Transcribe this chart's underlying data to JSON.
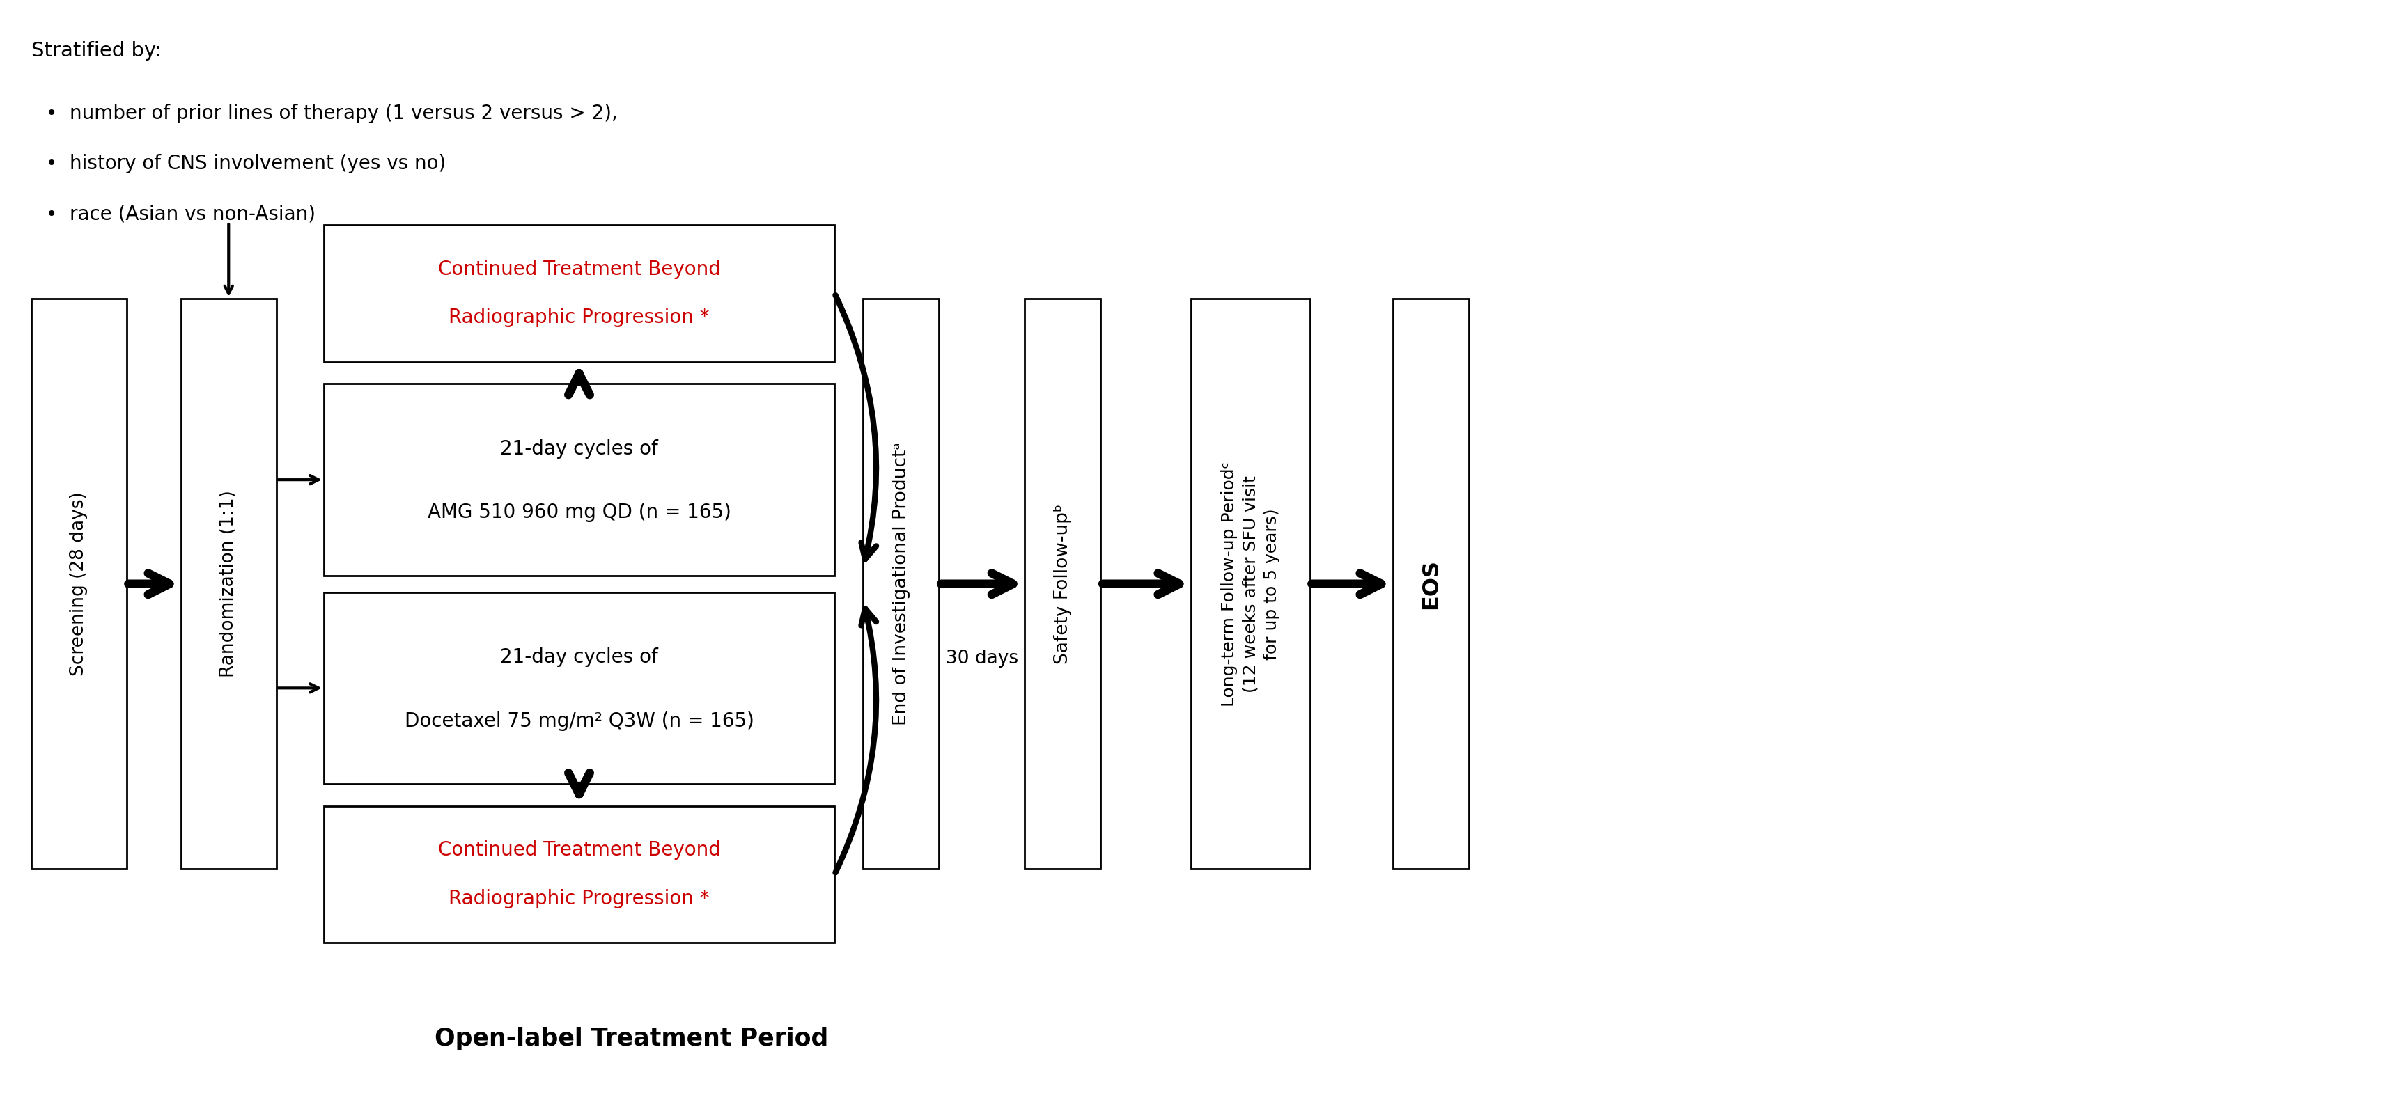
{
  "bg_color": "#ffffff",
  "text_color": "#000000",
  "red_color": "#cc0000",
  "stratified_title": "Stratified by:",
  "bullet_items": [
    "number of prior lines of therapy (1 versus 2 versus > 2),",
    "history of CNS involvement (yes vs no)",
    "race (Asian vs non-Asian)"
  ],
  "box_screening_text": "Screening (28 days)",
  "box_randomization_text": "Randomization (1:1)",
  "box_amg_line1": "21-day cycles of",
  "box_amg_line2": "AMG 510 960 mg QD (n = 165)",
  "box_doce_line1": "21-day cycles of",
  "box_doce_line2": "Docetaxel 75 mg/m² Q3W (n = 165)",
  "box_ctbr_top_line1": "Continued Treatment Beyond",
  "box_ctbr_top_line2": "Radiographic Progression *",
  "box_ctbr_bot_line1": "Continued Treatment Beyond",
  "box_ctbr_bot_line2": "Radiographic Progression *",
  "box_eoip_text": "End of Investigational Productᵃ",
  "box_safety_text": "Safety Follow-upᵇ",
  "box_ltfu_line1": "Long-term Follow-up Periodᶜ",
  "box_ltfu_line2": "(12 weeks after SFU visit",
  "box_ltfu_line3": "for up to 5 years)",
  "box_eos_text": "EOS",
  "label_30days": "30 days",
  "label_open_label": "Open-label Treatment Period",
  "font_size_body": 20,
  "font_size_title": 21,
  "font_size_label": 19,
  "font_size_bold_bottom": 25,
  "font_size_rotated": 19
}
